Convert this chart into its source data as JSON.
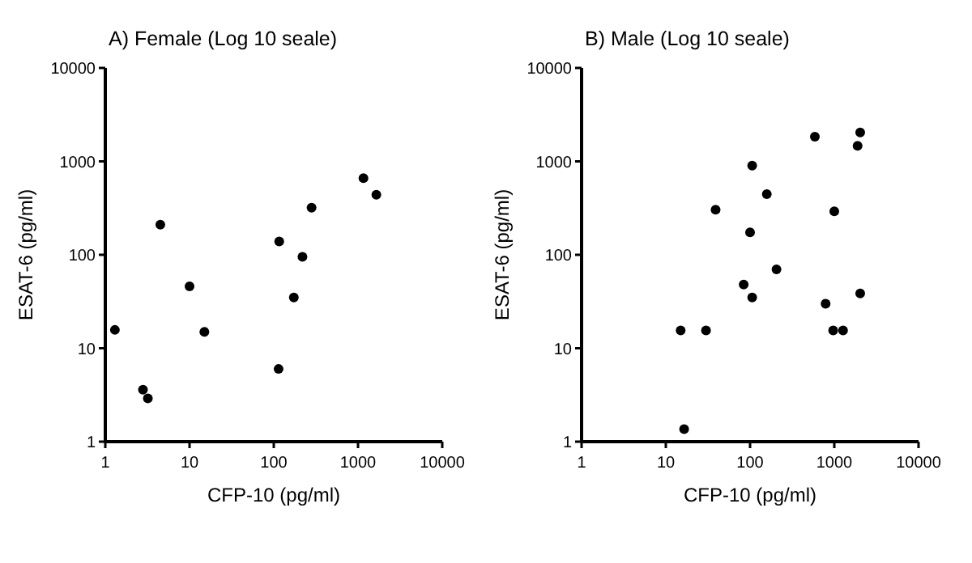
{
  "chart_data": [
    {
      "type": "scatter",
      "title": "A) Female (Log 10  seale)",
      "xlabel": "CFP-10 (pg/ml)",
      "ylabel": "ESAT-6 (pg/ml)",
      "log": "xy",
      "xlim": [
        1,
        10000
      ],
      "ylim": [
        1,
        10000
      ],
      "xticks": [
        1,
        10,
        100,
        1000,
        10000
      ],
      "yticks": [
        1,
        10,
        100,
        1000,
        10000
      ],
      "marker": "circle",
      "series": [
        {
          "color": "#000000",
          "x": [
            1.3,
            2.8,
            3.2,
            4.5,
            10,
            15,
            116,
            114,
            173,
            219,
            281,
            1160,
            1650
          ],
          "values": [
            15.7,
            3.6,
            2.9,
            210,
            46,
            15,
            139,
            6,
            35,
            95,
            320,
            660,
            440
          ]
        }
      ]
    },
    {
      "type": "scatter",
      "title": "B) Male  (Log 10 seale)",
      "xlabel": "CFP-10 (pg/ml)",
      "ylabel": "ESAT-6 (pg/ml)",
      "log": "xy",
      "xlim": [
        1,
        10000
      ],
      "ylim": [
        1,
        10000
      ],
      "xticks": [
        1,
        10,
        100,
        1000,
        10000
      ],
      "yticks": [
        1,
        10,
        100,
        1000,
        10000
      ],
      "marker": "circle",
      "series": [
        {
          "color": "#000000",
          "x": [
            15,
            16.5,
            30,
            39,
            84,
            100,
            106,
            106,
            158,
            206,
            588,
            789,
            970,
            1000,
            1270,
            1890,
            2030,
            2030
          ],
          "values": [
            15.5,
            1.36,
            15.5,
            304,
            48,
            174,
            900,
            35,
            446,
            70,
            1840,
            30,
            15.5,
            292,
            15.5,
            1470,
            38.6,
            2040
          ]
        }
      ]
    }
  ]
}
